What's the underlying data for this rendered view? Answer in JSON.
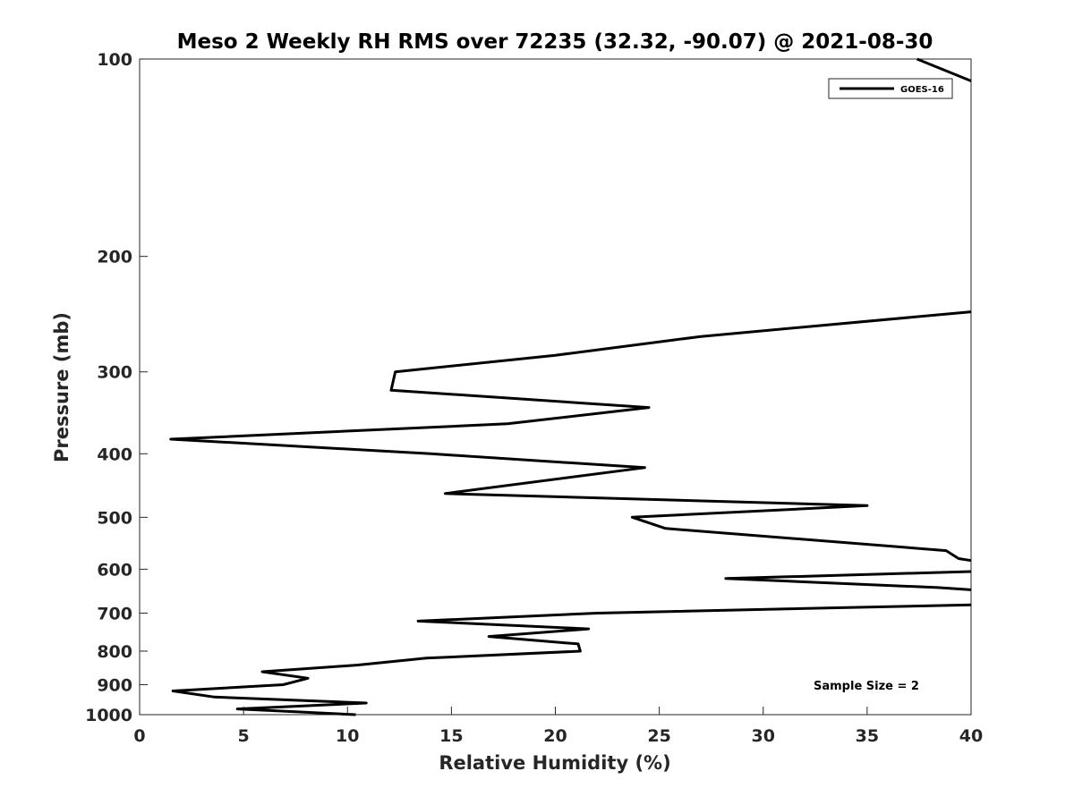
{
  "chart_data": {
    "type": "line",
    "title": "Meso 2 Weekly RH RMS over 72235 (32.32, -90.07) @ 2021-08-30",
    "xlabel": "Relative Humidity (%)",
    "ylabel": "Pressure (mb)",
    "xlim": [
      0,
      40
    ],
    "ylim": [
      100,
      1000
    ],
    "y_scale": "log",
    "y_reversed": true,
    "grid": false,
    "legend_position": "top-right",
    "x_ticks": [
      "0",
      "5",
      "10",
      "15",
      "20",
      "25",
      "30",
      "35",
      "40"
    ],
    "y_ticks": [
      "100",
      "200",
      "300",
      "400",
      "500",
      "600",
      "700",
      "800",
      "900",
      "1000"
    ],
    "series": [
      {
        "name": "GOES-16",
        "color": "#000000",
        "points": [
          {
            "x": 37.4,
            "y": 100
          },
          {
            "x": 40.0,
            "y": 108
          },
          {
            "x": null,
            "y": null
          },
          {
            "x": 40.0,
            "y": 243
          },
          {
            "x": 27.0,
            "y": 265
          },
          {
            "x": 20.0,
            "y": 283
          },
          {
            "x": 12.3,
            "y": 300
          },
          {
            "x": 12.1,
            "y": 320
          },
          {
            "x": 24.5,
            "y": 340
          },
          {
            "x": 17.7,
            "y": 360
          },
          {
            "x": 1.5,
            "y": 380
          },
          {
            "x": 14.0,
            "y": 400
          },
          {
            "x": 24.3,
            "y": 420
          },
          {
            "x": 14.7,
            "y": 460
          },
          {
            "x": 35.0,
            "y": 480
          },
          {
            "x": 23.7,
            "y": 500
          },
          {
            "x": 25.3,
            "y": 520
          },
          {
            "x": 38.8,
            "y": 562
          },
          {
            "x": 39.4,
            "y": 578
          },
          {
            "x": 40.0,
            "y": 582
          },
          {
            "x": null,
            "y": null
          },
          {
            "x": 40.0,
            "y": 605
          },
          {
            "x": 28.2,
            "y": 620
          },
          {
            "x": 38.4,
            "y": 640
          },
          {
            "x": 40.0,
            "y": 645
          },
          {
            "x": null,
            "y": null
          },
          {
            "x": 40.0,
            "y": 680
          },
          {
            "x": 22.0,
            "y": 700
          },
          {
            "x": 13.4,
            "y": 720
          },
          {
            "x": 21.6,
            "y": 740
          },
          {
            "x": 16.8,
            "y": 760
          },
          {
            "x": 21.1,
            "y": 780
          },
          {
            "x": 21.2,
            "y": 800
          },
          {
            "x": 13.8,
            "y": 820
          },
          {
            "x": 10.5,
            "y": 840
          },
          {
            "x": 5.9,
            "y": 860
          },
          {
            "x": 8.1,
            "y": 880
          },
          {
            "x": 6.9,
            "y": 900
          },
          {
            "x": 1.6,
            "y": 920
          },
          {
            "x": 3.6,
            "y": 940
          },
          {
            "x": 10.9,
            "y": 960
          },
          {
            "x": 4.7,
            "y": 980
          },
          {
            "x": 10.4,
            "y": 1000
          }
        ]
      }
    ],
    "annotation": "Sample Size = 2"
  }
}
